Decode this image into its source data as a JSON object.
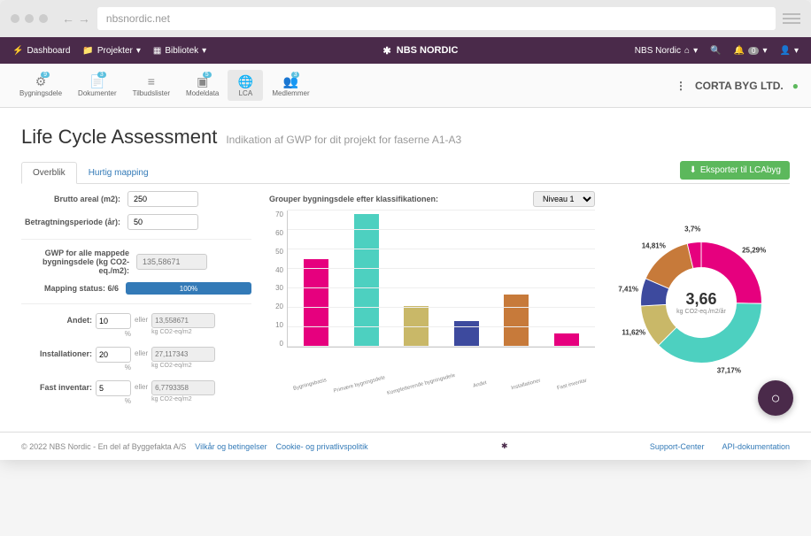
{
  "browser": {
    "url": "nbsnordic.net"
  },
  "topbar": {
    "dashboard": "Dashboard",
    "projects": "Projekter",
    "library": "Bibliotek",
    "brand": "NBS NORDIC",
    "account": "NBS Nordic",
    "notif_count": "0"
  },
  "subbar": {
    "items": [
      {
        "label": "Bygningsdele",
        "badge": "9"
      },
      {
        "label": "Dokumenter",
        "badge": "3"
      },
      {
        "label": "Tilbudslister",
        "badge": null
      },
      {
        "label": "Modeldata",
        "badge": "5"
      },
      {
        "label": "LCA",
        "badge": null
      },
      {
        "label": "Medlemmer",
        "badge": "3"
      }
    ],
    "company": "CORTA BYG LTD."
  },
  "page": {
    "title": "Life Cycle Assessment",
    "subtitle": "Indikation af GWP for dit projekt for faserne A1-A3"
  },
  "tabs": {
    "overview": "Overblik",
    "quickmap": "Hurtig mapping",
    "export": "Eksporter til LCAbyg"
  },
  "form": {
    "area_label": "Brutto areal (m2):",
    "area_value": "250",
    "period_label": "Betragtningsperiode (år):",
    "period_value": "50",
    "gwp_label": "GWP for alle mappede bygningsdele (kg CO2-eq./m2):",
    "gwp_value": "135,58671",
    "mapping_label": "Mapping status: 6/6",
    "mapping_pct": "100%",
    "extras": [
      {
        "label": "Andet:",
        "pct": "10",
        "val": "13,558671"
      },
      {
        "label": "Installationer:",
        "pct": "20",
        "val": "27,117343"
      },
      {
        "label": "Fast inventar:",
        "pct": "5",
        "val": "6,7793358"
      }
    ],
    "eller": "eller",
    "pct_unit": "%",
    "val_unit": "kg CO2-eq/m2"
  },
  "bar_chart": {
    "header": "Grouper bygningsdele efter klassifikationen:",
    "level": "Niveau 1",
    "ymax": 70,
    "ytick_step": 10,
    "categories": [
      "Bygningsbasis",
      "Primære bygningsdele",
      "Kompletterende bygningsdele",
      "Andet",
      "Installationer",
      "Fast inventar"
    ],
    "values": [
      45,
      68,
      21,
      13,
      27,
      7
    ],
    "colors": [
      "#e6007e",
      "#4dd0c0",
      "#c9b868",
      "#3d4a9e",
      "#c77a3a",
      "#e6007e"
    ],
    "grid_color": "#eeeeee"
  },
  "donut": {
    "center_value": "3,66",
    "center_unit": "kg CO2-eq./m2/år",
    "slices": [
      {
        "pct": 25.29,
        "color": "#e6007e",
        "label": "25,29%"
      },
      {
        "pct": 37.17,
        "color": "#4dd0c0",
        "label": "37,17%"
      },
      {
        "pct": 11.62,
        "color": "#c9b868",
        "label": "11,62%"
      },
      {
        "pct": 7.41,
        "color": "#3d4a9e",
        "label": "7,41%"
      },
      {
        "pct": 14.81,
        "color": "#c77a3a",
        "label": "14,81%"
      },
      {
        "pct": 3.7,
        "color": "#e6007e",
        "label": "3,7%"
      }
    ]
  },
  "footer": {
    "copyright": "© 2022 NBS Nordic - En del af Byggefakta A/S",
    "terms": "Vilkår og betingelser",
    "cookies": "Cookie- og privatlivspolitik",
    "support": "Support-Center",
    "api": "API-dokumentation"
  }
}
